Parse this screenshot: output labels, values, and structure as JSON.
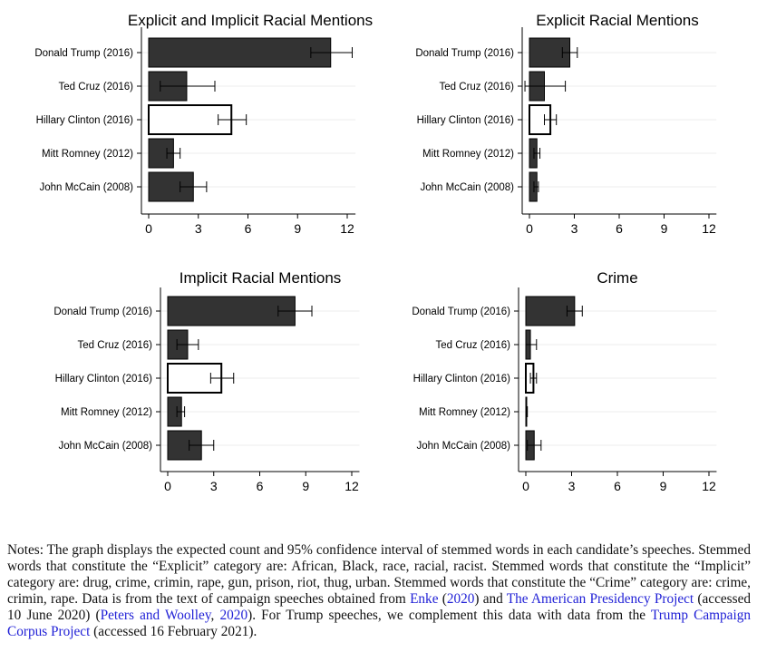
{
  "chart_data": [
    {
      "type": "bar",
      "title": "Explicit and Implicit Racial Mentions",
      "categories": [
        "Donald Trump (2016)",
        "Ted Cruz (2016)",
        "Hillary Clinton (2016)",
        "Mitt Romney (2012)",
        "John McCain (2008)"
      ],
      "values": [
        11.0,
        2.3,
        5.0,
        1.5,
        2.7
      ],
      "ci_low": [
        9.8,
        0.7,
        4.2,
        1.1,
        1.9
      ],
      "ci_high": [
        12.3,
        4.0,
        5.9,
        1.9,
        3.5
      ],
      "highlight_category": "Hillary Clinton (2016)",
      "xticks": [
        0,
        3,
        6,
        9,
        12
      ],
      "xlim": [
        0,
        12.5
      ],
      "grid": false
    },
    {
      "type": "bar",
      "title": "Explicit Racial Mentions",
      "categories": [
        "Donald Trump (2016)",
        "Ted Cruz (2016)",
        "Hillary Clinton (2016)",
        "Mitt Romney (2012)",
        "John McCain (2008)"
      ],
      "values": [
        2.7,
        1.0,
        1.4,
        0.5,
        0.5
      ],
      "ci_low": [
        2.2,
        -0.3,
        1.0,
        0.3,
        0.3
      ],
      "ci_high": [
        3.2,
        2.4,
        1.8,
        0.7,
        0.6
      ],
      "highlight_category": "Hillary Clinton (2016)",
      "xticks": [
        0,
        3,
        6,
        9,
        12
      ],
      "xlim": [
        0,
        12.5
      ],
      "grid": false
    },
    {
      "type": "bar",
      "title": "Implicit Racial Mentions",
      "categories": [
        "Donald Trump (2016)",
        "Ted Cruz (2016)",
        "Hillary Clinton (2016)",
        "Mitt Romney (2012)",
        "John McCain (2008)"
      ],
      "values": [
        8.3,
        1.3,
        3.5,
        0.9,
        2.2
      ],
      "ci_low": [
        7.2,
        0.6,
        2.8,
        0.6,
        1.4
      ],
      "ci_high": [
        9.4,
        2.0,
        4.3,
        1.1,
        3.0
      ],
      "highlight_category": "Hillary Clinton (2016)",
      "xticks": [
        0,
        3,
        6,
        9,
        12
      ],
      "xlim": [
        0,
        12.5
      ],
      "grid": false
    },
    {
      "type": "bar",
      "title": "Crime",
      "categories": [
        "Donald Trump (2016)",
        "Ted Cruz (2016)",
        "Hillary Clinton (2016)",
        "Mitt Romney (2012)",
        "John McCain (2008)"
      ],
      "values": [
        3.2,
        0.3,
        0.5,
        0.05,
        0.55
      ],
      "ci_low": [
        2.7,
        0.0,
        0.3,
        0.0,
        0.1
      ],
      "ci_high": [
        3.7,
        0.7,
        0.7,
        0.1,
        1.0
      ],
      "highlight_category": "Hillary Clinton (2016)",
      "xticks": [
        0,
        3,
        6,
        9,
        12
      ],
      "xlim": [
        0,
        12.5
      ],
      "grid": false
    }
  ],
  "colors": {
    "bar_fill": "#333333",
    "highlight_fill": "#ffffff",
    "stroke": "#000000",
    "gridline": "#eeeeee"
  },
  "notes": {
    "part1": "Notes: The graph displays the expected count and 95% confidence interval of stemmed words in each candidate’s speeches. Stemmed words that constitute the “Explicit” category are: African, Black, race, racial, racist. Stemmed words that constitute the “Implicit” category are: drug, crime, crimin, rape, gun, prison, riot, thug, urban. Stemmed words that constitute the “Crime” category are: crime, crimin, rape. Data is from the text of campaign speeches obtained from ",
    "link_enke": "Enke",
    "paren_open": " (",
    "link_enke_year": "2020",
    "part2": ") and ",
    "link_app": "The American Presidency Project",
    "part3": " (accessed 10 June 2020) (",
    "link_peters": "Peters and Woolley",
    "part4": ", ",
    "link_peters_year": "2020",
    "part5": "). For Trump speeches, we complement this data with data from the ",
    "link_trump": "Trump Campaign Corpus Project",
    "part6": " (accessed 16 February 2021)."
  }
}
